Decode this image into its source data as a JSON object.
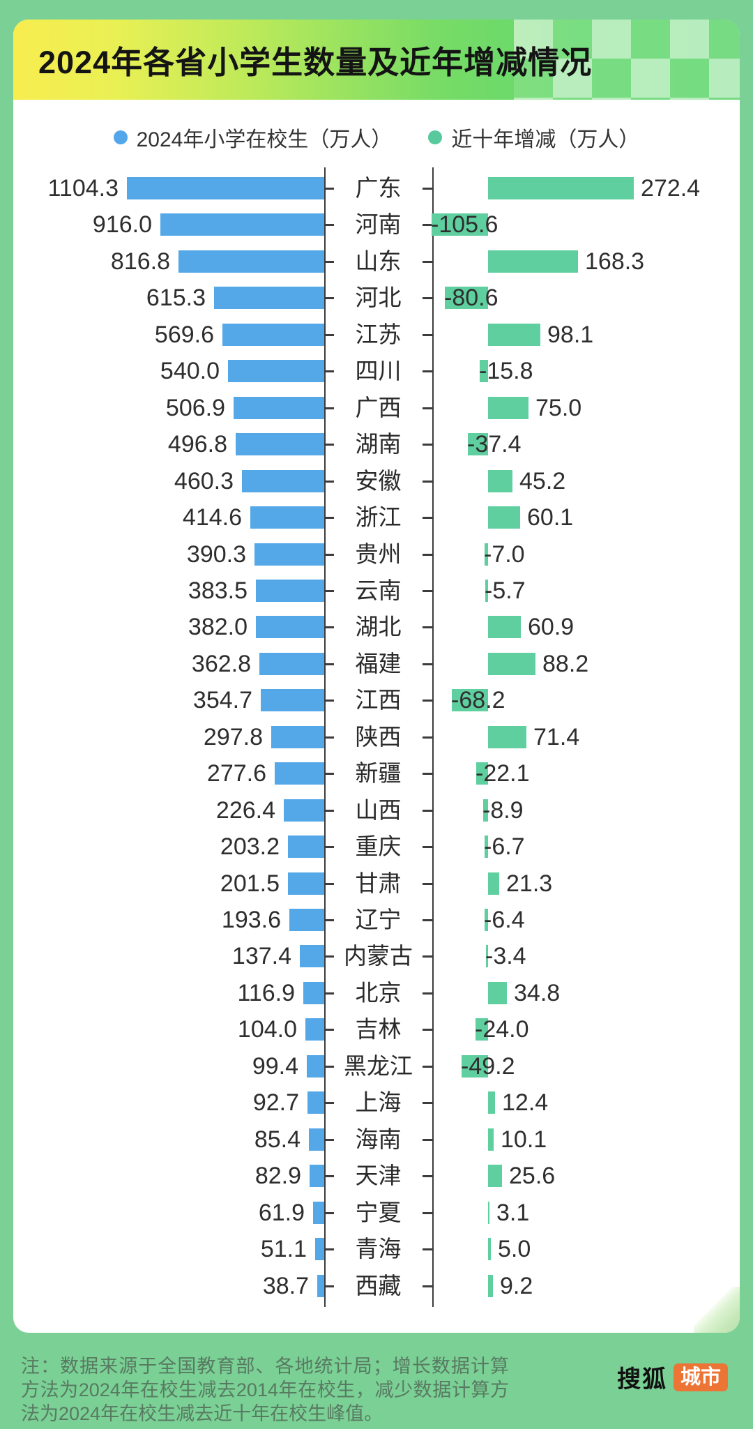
{
  "header": {
    "title": "2024年各省小学生数量及近年增减情况"
  },
  "legend": {
    "items": [
      {
        "label": "2024年小学在校生（万人）",
        "color": "#53a6ea"
      },
      {
        "label": "近十年增减（万人）",
        "color": "#58c89d"
      }
    ]
  },
  "colors": {
    "enrollment_bar": "#55a8e8",
    "change_bar": "#5fcfa0",
    "axis": "#3c3c3c",
    "brand_orange": "#ec7434",
    "page_background": "#7ad095"
  },
  "chart_data": {
    "type": "bar",
    "orientation": "horizontal-tornado",
    "title": "2024年各省小学生数量及近年增减情况",
    "categories": [
      "广东",
      "河南",
      "山东",
      "河北",
      "江苏",
      "四川",
      "广西",
      "湖南",
      "安徽",
      "浙江",
      "贵州",
      "云南",
      "湖北",
      "福建",
      "江西",
      "陕西",
      "新疆",
      "山西",
      "重庆",
      "甘肃",
      "辽宁",
      "内蒙古",
      "北京",
      "吉林",
      "黑龙江",
      "上海",
      "海南",
      "天津",
      "宁夏",
      "青海",
      "西藏"
    ],
    "series": [
      {
        "name": "2024年小学在校生（万人）",
        "values": [
          1104.3,
          916.0,
          816.8,
          615.3,
          569.6,
          540.0,
          506.9,
          496.8,
          460.3,
          414.6,
          390.3,
          383.5,
          382.0,
          362.8,
          354.7,
          297.8,
          277.6,
          226.4,
          203.2,
          201.5,
          193.6,
          137.4,
          116.9,
          104.0,
          99.4,
          92.7,
          85.4,
          82.9,
          61.9,
          51.1,
          38.7
        ]
      },
      {
        "name": "近十年增减（万人）",
        "values": [
          272.4,
          -105.6,
          168.3,
          -80.6,
          98.1,
          -15.8,
          75.0,
          -37.4,
          45.2,
          60.1,
          -7.0,
          -5.7,
          60.9,
          88.2,
          -68.2,
          71.4,
          -22.1,
          -8.9,
          -6.7,
          21.3,
          -6.4,
          -3.4,
          34.8,
          -24.0,
          -49.2,
          12.4,
          10.1,
          25.6,
          3.1,
          5.0,
          9.2
        ]
      }
    ],
    "layout_hints": {
      "left_axis_max": 1104.3,
      "right_axis_range": [
        -105.6,
        272.4
      ],
      "grid": false,
      "legend_position": "top-center",
      "value_labels": "outside-ends",
      "decimals": 1
    }
  },
  "footer": {
    "note": "注：数据来源于全国教育部、各地统计局；增长数据计算方法为2024年在校生减去2014年在校生，减少数据计算方法为2024年在校生减去近十年在校生峰值。",
    "brand_name": "搜狐",
    "brand_badge": "城市"
  }
}
